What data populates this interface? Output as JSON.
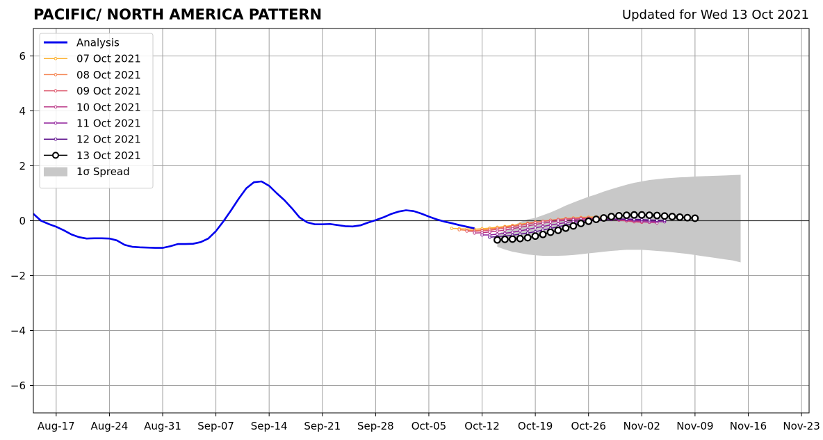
{
  "header": {
    "title": "PACIFIC/ NORTH AMERICA PATTERN",
    "updated": "Updated for Wed 13 Oct 2021"
  },
  "chart_data": {
    "type": "line",
    "title": "PACIFIC/ NORTH AMERICA PATTERN",
    "xlabel": "",
    "ylabel": "",
    "xlim": [
      "2021-08-14",
      "2021-11-24"
    ],
    "ylim": [
      -7,
      7
    ],
    "grid": true,
    "legend_position": "top-left",
    "x_ticks": [
      "2021-08-17",
      "2021-08-24",
      "2021-08-31",
      "2021-09-07",
      "2021-09-14",
      "2021-09-21",
      "2021-09-28",
      "2021-10-05",
      "2021-10-12",
      "2021-10-19",
      "2021-10-26",
      "2021-11-02",
      "2021-11-09",
      "2021-11-16",
      "2021-11-23"
    ],
    "x_tick_labels": [
      "Aug-17",
      "Aug-24",
      "Aug-31",
      "Sep-07",
      "Sep-14",
      "Sep-21",
      "Sep-28",
      "Oct-05",
      "Oct-12",
      "Oct-19",
      "Oct-26",
      "Nov-02",
      "Nov-09",
      "Nov-16",
      "Nov-23"
    ],
    "y_ticks": [
      -6,
      -4,
      -2,
      0,
      2,
      4,
      6
    ],
    "y_tick_labels": [
      "−6",
      "−4",
      "−2",
      "0",
      "2",
      "4",
      "6"
    ],
    "analysis": {
      "name": "Analysis",
      "color": "#0000ee",
      "start": "2021-08-14",
      "values": [
        0.25,
        0.0,
        -0.12,
        -0.22,
        -0.35,
        -0.5,
        -0.6,
        -0.65,
        -0.64,
        -0.64,
        -0.65,
        -0.72,
        -0.88,
        -0.95,
        -0.97,
        -0.98,
        -0.99,
        -0.99,
        -0.93,
        -0.85,
        -0.85,
        -0.84,
        -0.78,
        -0.65,
        -0.38,
        -0.02,
        0.38,
        0.8,
        1.18,
        1.4,
        1.43,
        1.27,
        1.0,
        0.75,
        0.45,
        0.12,
        -0.06,
        -0.13,
        -0.13,
        -0.12,
        -0.16,
        -0.2,
        -0.21,
        -0.17,
        -0.07,
        0.02,
        0.12,
        0.24,
        0.33,
        0.38,
        0.35,
        0.26,
        0.15,
        0.05,
        -0.03,
        -0.09,
        -0.16,
        -0.22,
        -0.28
      ]
    },
    "forecasts": [
      {
        "name": "07 Oct 2021",
        "color": "#fcb130",
        "start": "2021-10-08",
        "values": [
          -0.28,
          -0.29,
          -0.3,
          -0.31,
          -0.29,
          -0.27,
          -0.24,
          -0.21,
          -0.17,
          -0.13,
          -0.09,
          -0.05,
          -0.02,
          0.02,
          0.05,
          0.08,
          0.1,
          0.12,
          0.13,
          0.14
        ]
      },
      {
        "name": "08 Oct 2021",
        "color": "#f4804c",
        "start": "2021-10-09",
        "values": [
          -0.33,
          -0.35,
          -0.36,
          -0.34,
          -0.31,
          -0.27,
          -0.23,
          -0.19,
          -0.15,
          -0.1,
          -0.06,
          -0.02,
          0.01,
          0.04,
          0.07,
          0.09,
          0.11,
          0.12,
          0.13,
          0.13
        ]
      },
      {
        "name": "09 Oct 2021",
        "color": "#dd5a6e",
        "start": "2021-10-10",
        "values": [
          -0.38,
          -0.39,
          -0.37,
          -0.35,
          -0.31,
          -0.27,
          -0.22,
          -0.17,
          -0.12,
          -0.07,
          -0.03,
          0.01,
          0.04,
          0.06,
          0.08,
          0.09,
          0.09,
          0.08,
          0.07,
          0.05,
          0.02,
          -0.01,
          -0.04,
          -0.06
        ]
      },
      {
        "name": "10 Oct 2021",
        "color": "#b93585",
        "start": "2021-10-11",
        "values": [
          -0.45,
          -0.44,
          -0.41,
          -0.38,
          -0.34,
          -0.29,
          -0.24,
          -0.19,
          -0.14,
          -0.09,
          -0.05,
          -0.01,
          0.02,
          0.04,
          0.06,
          0.07,
          0.07,
          0.06,
          0.05,
          0.03,
          0.01,
          -0.02,
          -0.04,
          -0.06,
          -0.08
        ]
      },
      {
        "name": "11 Oct 2021",
        "color": "#8e1e9a",
        "start": "2021-10-12",
        "values": [
          -0.52,
          -0.52,
          -0.49,
          -0.46,
          -0.42,
          -0.37,
          -0.32,
          -0.26,
          -0.21,
          -0.16,
          -0.11,
          -0.07,
          -0.03,
          0.0,
          0.03,
          0.05,
          0.06,
          0.06,
          0.05,
          0.04,
          0.02,
          0.0,
          -0.02,
          -0.03,
          -0.04
        ]
      },
      {
        "name": "12 Oct 2021",
        "color": "#5c0f8b",
        "start": "2021-10-13",
        "values": [
          -0.6,
          -0.58,
          -0.56,
          -0.53,
          -0.49,
          -0.45,
          -0.4,
          -0.34,
          -0.28,
          -0.22,
          -0.16,
          -0.11,
          -0.06,
          -0.02,
          0.01,
          0.03,
          0.05,
          0.06,
          0.06,
          0.05,
          0.04,
          0.03,
          0.02,
          0.01
        ]
      },
      {
        "name": "13 Oct 2021",
        "color": "#000000",
        "start": "2021-10-14",
        "values": [
          -0.7,
          -0.68,
          -0.67,
          -0.65,
          -0.62,
          -0.56,
          -0.5,
          -0.42,
          -0.35,
          -0.27,
          -0.19,
          -0.1,
          -0.02,
          0.05,
          0.1,
          0.15,
          0.18,
          0.2,
          0.21,
          0.21,
          0.2,
          0.19,
          0.17,
          0.15,
          0.13,
          0.11,
          0.09
        ]
      }
    ],
    "spread": {
      "name": "1σ Spread",
      "color": "#c8c8c8",
      "start": "2021-10-14",
      "upper": [
        -0.5,
        -0.35,
        -0.2,
        -0.05,
        0.05,
        0.1,
        0.2,
        0.3,
        0.42,
        0.55,
        0.66,
        0.77,
        0.87,
        0.96,
        1.06,
        1.15,
        1.23,
        1.31,
        1.38,
        1.43,
        1.48,
        1.51,
        1.54,
        1.56,
        1.58,
        1.59,
        1.61,
        1.62,
        1.63,
        1.64,
        1.65,
        1.66,
        1.67
      ],
      "lower": [
        -0.95,
        -1.05,
        -1.13,
        -1.18,
        -1.23,
        -1.26,
        -1.28,
        -1.28,
        -1.28,
        -1.27,
        -1.25,
        -1.22,
        -1.19,
        -1.16,
        -1.13,
        -1.1,
        -1.08,
        -1.06,
        -1.06,
        -1.06,
        -1.08,
        -1.1,
        -1.12,
        -1.15,
        -1.18,
        -1.21,
        -1.25,
        -1.29,
        -1.33,
        -1.37,
        -1.41,
        -1.45,
        -1.52
      ]
    },
    "legend": [
      {
        "label": "Analysis",
        "color": "#0000ee",
        "kind": "thick"
      },
      {
        "label": "07 Oct 2021",
        "color": "#fcb130",
        "kind": "dot"
      },
      {
        "label": "08 Oct 2021",
        "color": "#f4804c",
        "kind": "dot"
      },
      {
        "label": "09 Oct 2021",
        "color": "#dd5a6e",
        "kind": "dot"
      },
      {
        "label": "10 Oct 2021",
        "color": "#b93585",
        "kind": "dot"
      },
      {
        "label": "11 Oct 2021",
        "color": "#8e1e9a",
        "kind": "dot"
      },
      {
        "label": "12 Oct 2021",
        "color": "#5c0f8b",
        "kind": "dot"
      },
      {
        "label": "13 Oct 2021",
        "color": "#000000",
        "kind": "circle"
      },
      {
        "label": "1σ Spread",
        "color": "#c8c8c8",
        "kind": "patch"
      }
    ]
  }
}
